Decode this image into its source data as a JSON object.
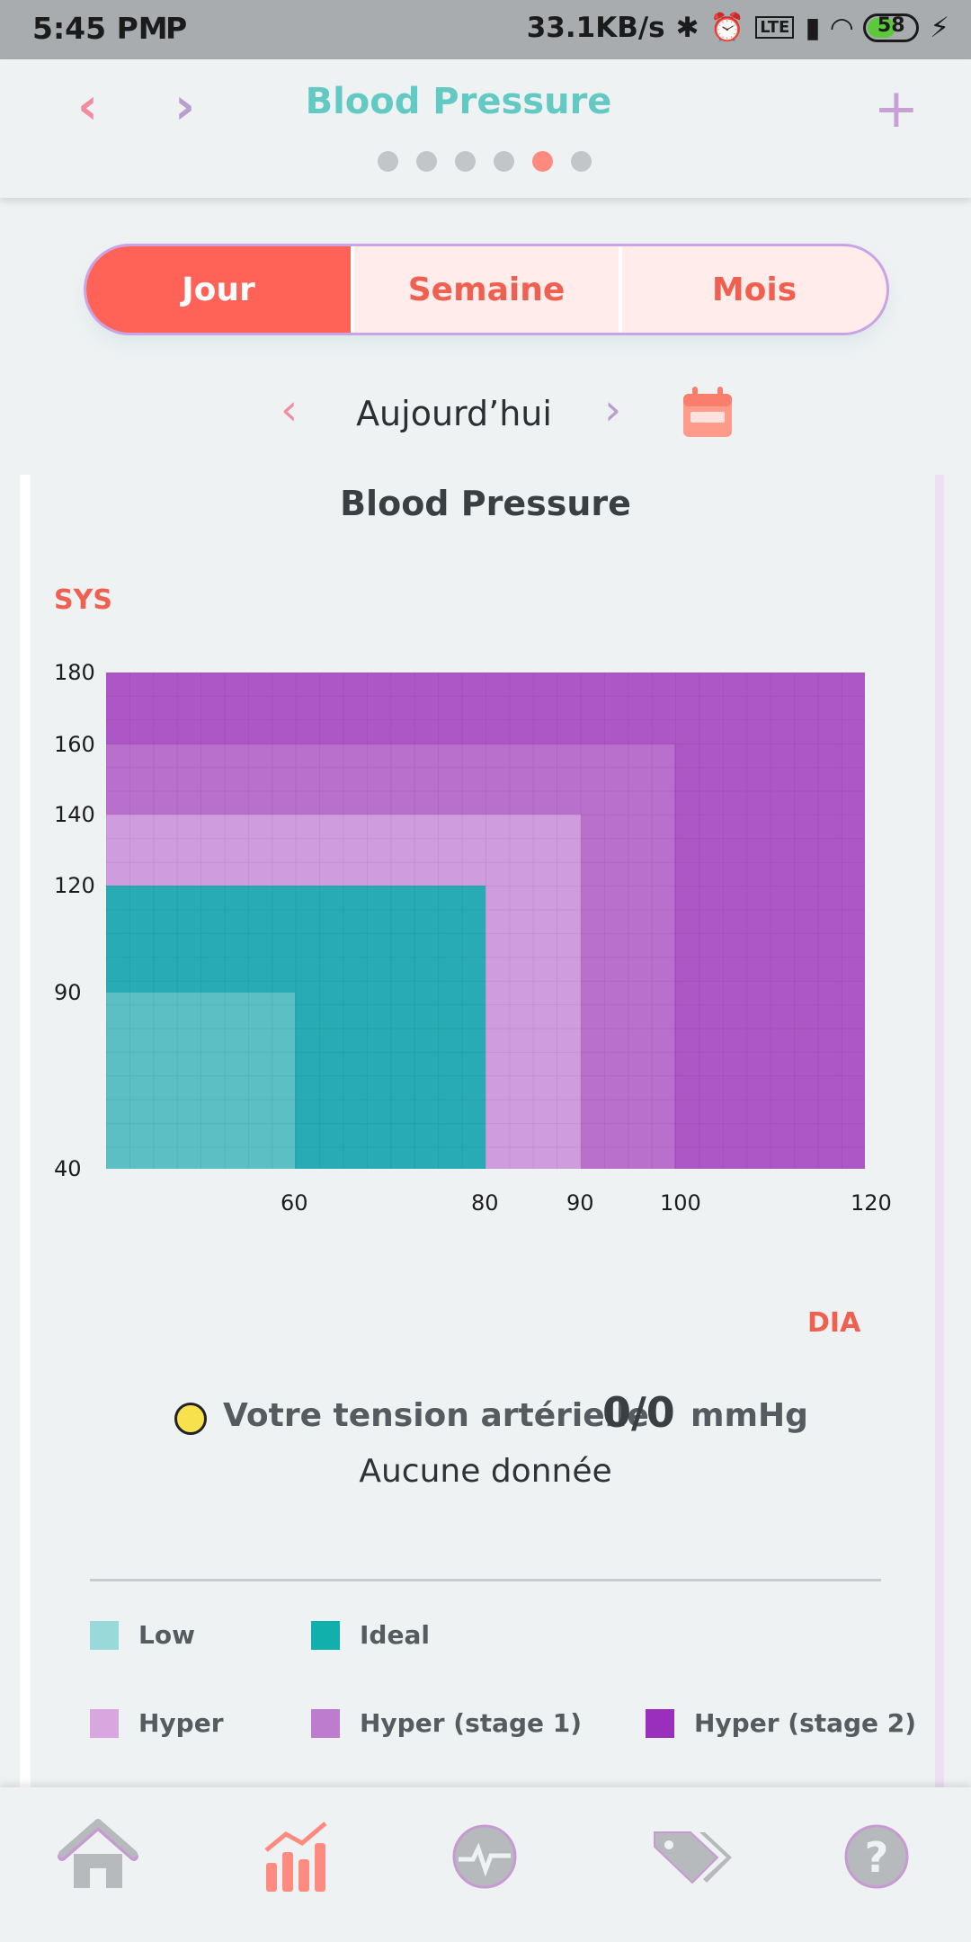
{
  "status_bar": {
    "time": "5:45 PM",
    "app_indicator": "P",
    "network_speed": "33.1KB/s",
    "battery_level": "58"
  },
  "header": {
    "title": "Blood Pressure",
    "page_dots_count": 6,
    "active_dot_index": 4,
    "icons": [
      "chevron-left-icon",
      "chevron-right-icon",
      "plus-icon"
    ]
  },
  "period_tabs": [
    {
      "label": "Jour",
      "active": true
    },
    {
      "label": "Semaine",
      "active": false
    },
    {
      "label": "Mois",
      "active": false
    }
  ],
  "date_nav": {
    "label": "Aujourd’hui",
    "icons": [
      "chevron-left-icon",
      "chevron-right-icon",
      "calendar-icon"
    ]
  },
  "chart": {
    "title": "Blood Pressure",
    "y_axis_label": "SYS",
    "x_axis_label": "DIA"
  },
  "chart_data": {
    "type": "area",
    "title": "Blood Pressure",
    "xlabel": "DIA",
    "ylabel": "SYS",
    "x_ticks": [
      "60",
      "80",
      "90",
      "100",
      "120"
    ],
    "y_ticks": [
      "180",
      "160",
      "140",
      "120",
      "90",
      "40"
    ],
    "xlim": [
      40,
      120
    ],
    "ylim": [
      40,
      180
    ],
    "grid": true,
    "regions": [
      {
        "name": "Hyper (stage 2)",
        "dia_max": 120,
        "sys_max": 180,
        "color": "#ad57c6"
      },
      {
        "name": "Hyper (stage 1)",
        "dia_max": 100,
        "sys_max": 160,
        "color": "#b96fcc"
      },
      {
        "name": "Hyper",
        "dia_max": 90,
        "sys_max": 140,
        "color": "#cf9ddd"
      },
      {
        "name": "Ideal",
        "dia_max": 80,
        "sys_max": 120,
        "color": "#28abb4"
      },
      {
        "name": "Low",
        "dia_max": 60,
        "sys_max": 90,
        "color": "#5bbfc4"
      }
    ]
  },
  "reading": {
    "label": "Votre tension artérielle",
    "value": "0/0",
    "unit": "mmHg",
    "indicator_color": "#f7e24d",
    "no_data": "Aucune donnée"
  },
  "legend": [
    {
      "label": "Low",
      "color": "#9ad9d9"
    },
    {
      "label": "Ideal",
      "color": "#12b0ad"
    },
    {
      "label": "Hyper",
      "color": "#d9a6e0"
    },
    {
      "label": "Hyper (stage 1)",
      "color": "#be7ccf"
    },
    {
      "label": "Hyper (stage 2)",
      "color": "#9a2fbd"
    }
  ],
  "bottom_nav": [
    {
      "icon": "home-icon",
      "active": false
    },
    {
      "icon": "chart-icon",
      "active": true
    },
    {
      "icon": "heartbeat-icon",
      "active": false
    },
    {
      "icon": "tag-icon",
      "active": false
    },
    {
      "icon": "help-icon",
      "active": false
    }
  ],
  "colors": {
    "accent": "#ff6257",
    "title_teal": "#63c9c3",
    "muted_purple": "#c7a0d4"
  }
}
